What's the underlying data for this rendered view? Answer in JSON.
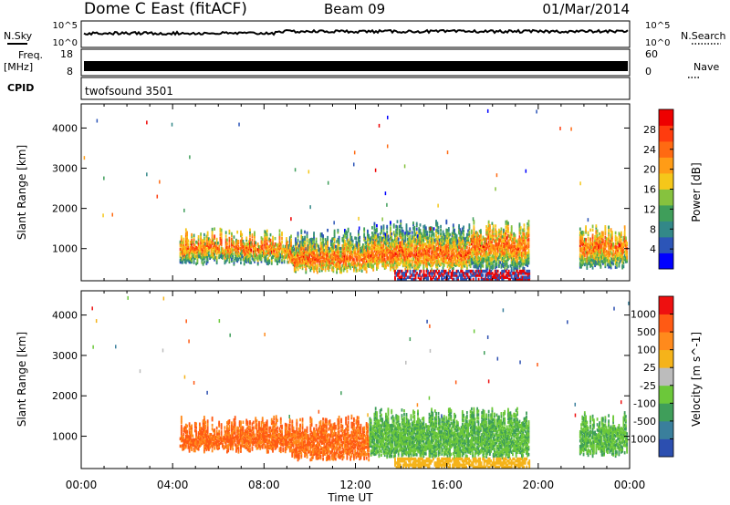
{
  "header": {
    "station": "Dome C East (fitACF)",
    "beam": "Beam 09",
    "date": "01/Mar/2014"
  },
  "top_panels": {
    "nsky_label": "N.Sky",
    "nsky_ticks": [
      "10^5",
      "10^0"
    ],
    "nsearch_label": "N.Search",
    "nsearch_ticks": [
      "10^5",
      "10^0"
    ],
    "freq_label": "Freq.",
    "freq_unit": "[MHz]",
    "freq_ticks": [
      "18",
      "8"
    ],
    "nave_label": "Nave",
    "nave_ticks": [
      "60",
      "0"
    ],
    "cpid_label": "CPID",
    "cpid_value": "twofsound 3501"
  },
  "chart_data": [
    {
      "type": "heatmap",
      "name": "power",
      "xlabel": "",
      "ylabel": "Slant Range [km]",
      "xlim": [
        0,
        24
      ],
      "ylim": [
        200,
        4600
      ],
      "yticks": [
        1000,
        2000,
        3000,
        4000
      ],
      "colorbar": {
        "label": "Power [dB]",
        "ticks": [
          "28",
          "24",
          "20",
          "16",
          "12",
          "8",
          "4"
        ],
        "colors": [
          "#0000ff",
          "#2c55b8",
          "#338888",
          "#3f9e5a",
          "#86c23e",
          "#f5c71a",
          "#ff9c16",
          "#ff6a12",
          "#ff3c0e",
          "#ee0000"
        ]
      }
    },
    {
      "type": "heatmap",
      "name": "velocity",
      "xlabel": "Time UT",
      "ylabel": "Slant Range [km]",
      "xlim": [
        0,
        24
      ],
      "ylim": [
        200,
        4600
      ],
      "xticks": [
        "00:00",
        "04:00",
        "08:00",
        "12:00",
        "16:00",
        "20:00",
        "00:00"
      ],
      "yticks": [
        1000,
        2000,
        3000,
        4000
      ],
      "colorbar": {
        "label": "Velocity [m s^-1]",
        "ticks": [
          "1000",
          "500",
          "100",
          "25",
          "-25",
          "-100",
          "-500",
          "-1000"
        ],
        "colors": [
          "#2c4fb0",
          "#3a7f9c",
          "#3f9e5a",
          "#6cc83a",
          "#bcbcbc",
          "#f5b31a",
          "#ff8a1c",
          "#ff5a14",
          "#ee1010"
        ]
      }
    }
  ]
}
